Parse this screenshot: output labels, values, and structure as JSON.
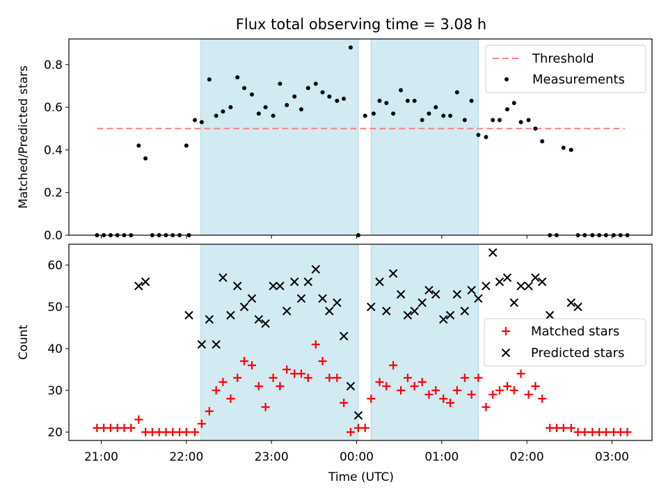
{
  "chart_data": {
    "type": "scatter",
    "title": "Flux total observing time = 3.08 h",
    "xlabel": "Time (UTC)",
    "x_tick_labels": [
      "21:00",
      "22:00",
      "23:00",
      "00:00",
      "01:00",
      "02:00",
      "03:00"
    ],
    "x_range_hours": [
      20.62,
      27.47
    ],
    "shaded_intervals_hours": [
      [
        22.17,
        24.02
      ],
      [
        24.17,
        25.43
      ]
    ],
    "colors": {
      "threshold": "#ff7f7f",
      "measurements": "#000000",
      "matched": "#ff0000",
      "predicted": "#000000",
      "shade": "#add8e6"
    },
    "panels": [
      {
        "ylabel": "Matched/Predicted stars",
        "ylim": [
          0,
          0.92
        ],
        "y_tick_labels": [
          "0.0",
          "0.2",
          "0.4",
          "0.6",
          "0.8"
        ],
        "legend": {
          "placement": "top-right",
          "entries": [
            "Threshold",
            "Measurements"
          ]
        },
        "threshold": {
          "name": "Threshold",
          "value": 0.5,
          "x_start": 20.95,
          "x_end": 27.15
        },
        "measurements": {
          "name": "Measurements",
          "x": [
            20.95,
            21.03,
            21.11,
            21.19,
            21.27,
            21.35,
            21.44,
            21.52,
            21.6,
            21.68,
            21.76,
            21.84,
            21.92,
            22.0,
            22.03,
            22.1,
            22.18,
            22.27,
            22.35,
            22.43,
            22.52,
            22.6,
            22.68,
            22.77,
            22.85,
            22.93,
            23.02,
            23.1,
            23.18,
            23.27,
            23.35,
            23.43,
            23.52,
            23.6,
            23.68,
            23.77,
            23.85,
            23.93,
            24.02,
            24.1,
            24.2,
            24.27,
            24.35,
            24.43,
            24.52,
            24.6,
            24.68,
            24.77,
            24.85,
            24.93,
            25.02,
            25.1,
            25.18,
            25.27,
            25.35,
            25.43,
            25.52,
            25.6,
            25.68,
            25.77,
            25.85,
            25.93,
            26.02,
            26.1,
            26.18,
            26.27,
            26.35,
            26.43,
            26.52,
            26.6,
            26.68,
            26.77,
            26.85,
            26.93,
            27.02,
            27.1,
            27.18
          ],
          "y": [
            0,
            0,
            0,
            0,
            0,
            0,
            0.42,
            0.36,
            0,
            0,
            0,
            0,
            0,
            0.42,
            0,
            0.54,
            0.53,
            0.73,
            0.56,
            0.58,
            0.6,
            0.74,
            0.69,
            0.66,
            0.57,
            0.6,
            0.56,
            0.71,
            0.61,
            0.65,
            0.59,
            0.69,
            0.71,
            0.67,
            0.65,
            0.63,
            0.64,
            0.88,
            0,
            0.56,
            0.57,
            0.63,
            0.62,
            0.57,
            0.68,
            0.63,
            0.63,
            0.54,
            0.57,
            0.6,
            0.56,
            0.56,
            0.67,
            0.54,
            0.63,
            0.47,
            0.46,
            0.54,
            0.54,
            0.59,
            0.62,
            0.53,
            0.54,
            0.5,
            0.44,
            0,
            0,
            0.41,
            0.4,
            0,
            0,
            0,
            0,
            0,
            0,
            0,
            0
          ]
        }
      },
      {
        "ylabel": "Count",
        "ylim": [
          18,
          65
        ],
        "y_tick_labels": [
          "20",
          "30",
          "40",
          "50",
          "60"
        ],
        "legend": {
          "placement": "center-right",
          "entries": [
            "Matched stars",
            "Predicted stars"
          ]
        },
        "series": [
          {
            "name": "Matched stars",
            "x": [
              20.95,
              21.03,
              21.11,
              21.19,
              21.27,
              21.35,
              21.44,
              21.52,
              21.6,
              21.68,
              21.76,
              21.84,
              21.92,
              22.0,
              22.1,
              22.18,
              22.27,
              22.35,
              22.43,
              22.52,
              22.6,
              22.68,
              22.77,
              22.85,
              22.93,
              23.02,
              23.1,
              23.18,
              23.27,
              23.35,
              23.43,
              23.52,
              23.6,
              23.68,
              23.77,
              23.85,
              23.93,
              24.02,
              24.1,
              24.17,
              24.27,
              24.35,
              24.43,
              24.52,
              24.6,
              24.68,
              24.77,
              24.85,
              24.93,
              25.02,
              25.1,
              25.18,
              25.27,
              25.35,
              25.43,
              25.52,
              25.6,
              25.68,
              25.77,
              25.85,
              25.93,
              26.02,
              26.1,
              26.18,
              26.27,
              26.35,
              26.43,
              26.52,
              26.6,
              26.68,
              26.77,
              26.85,
              26.93,
              27.02,
              27.1,
              27.18
            ],
            "values": [
              21,
              21,
              21,
              21,
              21,
              21,
              23,
              20,
              20,
              20,
              20,
              20,
              20,
              20,
              20,
              22,
              25,
              30,
              32,
              28,
              33,
              37,
              36,
              31,
              26,
              33,
              31,
              35,
              34,
              34,
              33,
              41,
              37,
              33,
              33,
              27,
              20,
              21,
              21,
              28,
              32,
              31,
              36,
              30,
              33,
              31,
              32,
              29,
              30,
              28,
              27,
              30,
              33,
              29,
              33,
              26,
              29,
              30,
              31,
              30,
              34,
              29,
              31,
              28,
              21,
              21,
              21,
              21,
              20,
              20,
              20,
              20,
              20,
              20,
              20,
              20
            ]
          },
          {
            "name": "Predicted stars",
            "x": [
              21.44,
              21.52,
              22.03,
              22.18,
              22.27,
              22.35,
              22.43,
              22.52,
              22.6,
              22.68,
              22.77,
              22.85,
              22.93,
              23.02,
              23.1,
              23.18,
              23.27,
              23.35,
              23.43,
              23.52,
              23.6,
              23.68,
              23.77,
              23.85,
              23.93,
              24.02,
              24.17,
              24.27,
              24.35,
              24.43,
              24.52,
              24.6,
              24.68,
              24.77,
              24.85,
              24.93,
              25.02,
              25.1,
              25.18,
              25.27,
              25.35,
              25.43,
              25.52,
              25.6,
              25.68,
              25.77,
              25.85,
              25.93,
              26.02,
              26.1,
              26.18,
              26.27,
              26.52,
              26.6
            ],
            "values": [
              55,
              56,
              48,
              41,
              47,
              41,
              57,
              48,
              55,
              50,
              52,
              47,
              46,
              55,
              55,
              49,
              56,
              52,
              56,
              59,
              52,
              49,
              51,
              43,
              31,
              24,
              50,
              56,
              49,
              58,
              53,
              48,
              49,
              51,
              54,
              53,
              47,
              48,
              53,
              49,
              54,
              52,
              55,
              63,
              56,
              57,
              51,
              55,
              55,
              57,
              56,
              48,
              51,
              50
            ]
          }
        ]
      }
    ]
  }
}
